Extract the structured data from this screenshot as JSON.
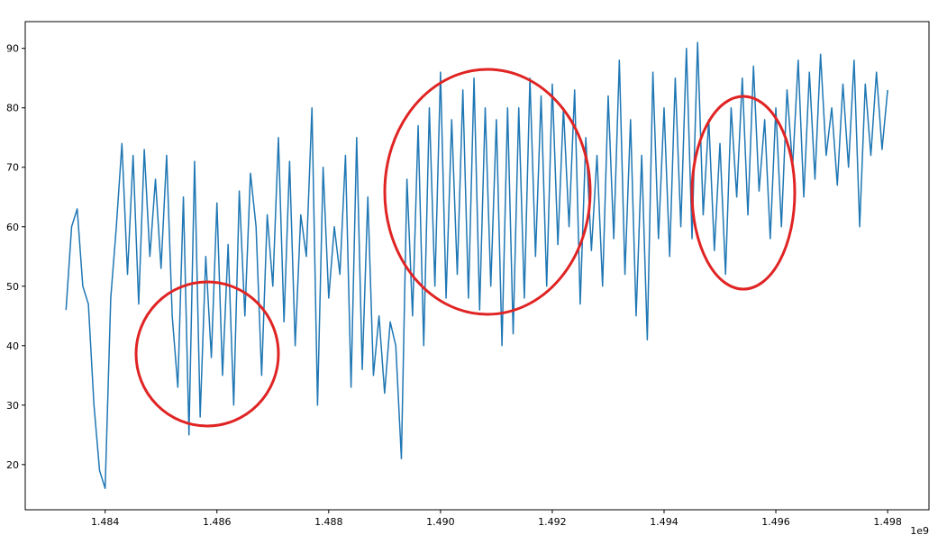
{
  "chart_data": {
    "type": "line",
    "color": "#1f77b4",
    "x": [
      1.4833,
      1.4834,
      1.4835,
      1.4836,
      1.4837,
      1.4838,
      1.4839,
      1.484,
      1.4841,
      1.4842,
      1.4843,
      1.4844,
      1.4845,
      1.4846,
      1.4847,
      1.4848,
      1.4849,
      1.485,
      1.4851,
      1.4852,
      1.4853,
      1.4854,
      1.4855,
      1.4856,
      1.4857,
      1.4858,
      1.4859,
      1.486,
      1.4861,
      1.4862,
      1.4863,
      1.4864,
      1.4865,
      1.4866,
      1.4867,
      1.4868,
      1.4869,
      1.487,
      1.4871,
      1.4872,
      1.4873,
      1.4874,
      1.4875,
      1.4876,
      1.4877,
      1.4878,
      1.4879,
      1.488,
      1.4881,
      1.4882,
      1.4883,
      1.4884,
      1.4885,
      1.4886,
      1.4887,
      1.4888,
      1.4889,
      1.489,
      1.4891,
      1.4892,
      1.4893,
      1.4894,
      1.4895,
      1.4896,
      1.4897,
      1.4898,
      1.4899,
      1.49,
      1.4901,
      1.4902,
      1.4903,
      1.4904,
      1.4905,
      1.4906,
      1.4907,
      1.4908,
      1.4909,
      1.491,
      1.4911,
      1.4912,
      1.4913,
      1.4914,
      1.4915,
      1.4916,
      1.4917,
      1.4918,
      1.4919,
      1.492,
      1.4921,
      1.4922,
      1.4923,
      1.4924,
      1.4925,
      1.4926,
      1.4927,
      1.4928,
      1.4929,
      1.493,
      1.4931,
      1.4932,
      1.4933,
      1.4934,
      1.4935,
      1.4936,
      1.4937,
      1.4938,
      1.4939,
      1.494,
      1.4941,
      1.4942,
      1.4943,
      1.4944,
      1.4945,
      1.4946,
      1.4947,
      1.4948,
      1.4949,
      1.495,
      1.4951,
      1.4952,
      1.4953,
      1.4954,
      1.4955,
      1.4956,
      1.4957,
      1.4958,
      1.4959,
      1.496,
      1.4961,
      1.4962,
      1.4963,
      1.4964,
      1.4965,
      1.4966,
      1.4967,
      1.4968,
      1.4969,
      1.497,
      1.4971,
      1.4972,
      1.4973,
      1.4974,
      1.4975,
      1.4976,
      1.4977,
      1.4978,
      1.4979,
      1.498
    ],
    "values": [
      46,
      60,
      63,
      50,
      47,
      30,
      19,
      16,
      48,
      60,
      74,
      52,
      72,
      47,
      73,
      55,
      68,
      53,
      72,
      45,
      33,
      65,
      25,
      71,
      28,
      55,
      38,
      64,
      35,
      57,
      30,
      66,
      45,
      69,
      60,
      35,
      62,
      50,
      75,
      44,
      71,
      40,
      62,
      55,
      80,
      30,
      70,
      48,
      60,
      52,
      72,
      33,
      75,
      36,
      65,
      35,
      45,
      32,
      44,
      40,
      21,
      68,
      45,
      77,
      40,
      80,
      50,
      86,
      48,
      78,
      52,
      83,
      48,
      85,
      46,
      80,
      50,
      78,
      40,
      80,
      42,
      80,
      48,
      85,
      55,
      82,
      50,
      84,
      57,
      80,
      60,
      83,
      47,
      75,
      56,
      72,
      50,
      82,
      58,
      88,
      52,
      78,
      45,
      72,
      41,
      86,
      58,
      80,
      55,
      85,
      60,
      90,
      58,
      91,
      62,
      78,
      56,
      74,
      52,
      80,
      65,
      85,
      62,
      87,
      66,
      78,
      58,
      80,
      60,
      83,
      70,
      88,
      65,
      86,
      68,
      89,
      72,
      80,
      67,
      84,
      70,
      88,
      60,
      84,
      72,
      86,
      73,
      83
    ],
    "xlim": [
      1.48257,
      1.49874
    ],
    "ylim": [
      12.4,
      94.5
    ],
    "xticks": [
      1.484,
      1.486,
      1.488,
      {
        "value": 1.49,
        "label": "1.490"
      },
      1.492,
      1.494,
      1.496,
      1.498
    ],
    "yticks": [
      20,
      30,
      40,
      50,
      60,
      70,
      80,
      90
    ],
    "x_offset_label": "1e9"
  }
}
